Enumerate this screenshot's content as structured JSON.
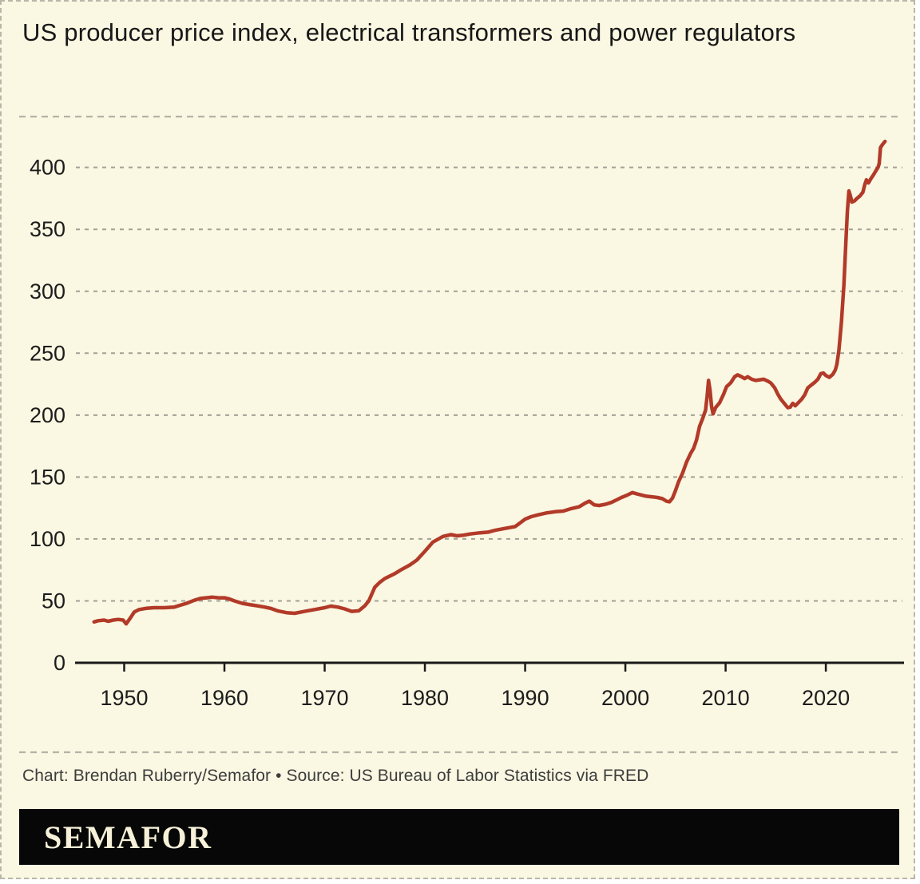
{
  "title": "US producer price index, electrical transformers and power regulators",
  "credit": "Chart: Brendan Ruberry/Semafor • Source: US Bureau of Labor Statistics via FRED",
  "logo": "SEMAFOR",
  "colors": {
    "background": "#faf7e2",
    "line": "#b23a28",
    "grid": "#a3a196",
    "separator": "#b5b3a7",
    "axis": "#1a1a1a",
    "tick_label": "#1c1c1c",
    "title_text": "#171717",
    "credit_text": "#3d3d3d",
    "logo_bar": "#070707",
    "logo_text": "#f6f1d8",
    "border": "#b9b7ab"
  },
  "chart_data": {
    "type": "line",
    "title": "US producer price index, electrical transformers and power regulators",
    "xlabel": "",
    "ylabel": "",
    "grid": "horizontal-dashed",
    "legend": "none",
    "x_ticks": [
      1950,
      1960,
      1970,
      1980,
      1990,
      2000,
      2010,
      2020
    ],
    "y_ticks": [
      0,
      50,
      100,
      150,
      200,
      250,
      300,
      350,
      400
    ],
    "xlim": [
      1945.1,
      2027.8
    ],
    "ylim": [
      0,
      443
    ],
    "series": [
      {
        "name": "Producer price index, electrical transformers and power regulators",
        "color": "#b23a28",
        "points": [
          [
            1947,
            33
          ],
          [
            1947.4,
            34
          ],
          [
            1948,
            34.5
          ],
          [
            1948.4,
            33.5
          ],
          [
            1948.9,
            34.5
          ],
          [
            1949.4,
            35
          ],
          [
            1949.9,
            34.5
          ],
          [
            1950.2,
            31.5
          ],
          [
            1950.6,
            36
          ],
          [
            1951,
            41
          ],
          [
            1951.5,
            43
          ],
          [
            1952.2,
            44
          ],
          [
            1953,
            44.5
          ],
          [
            1954,
            44.5
          ],
          [
            1955,
            45
          ],
          [
            1955.6,
            46.5
          ],
          [
            1956.2,
            48
          ],
          [
            1957,
            50.5
          ],
          [
            1957.6,
            52
          ],
          [
            1958.2,
            52.5
          ],
          [
            1958.8,
            53
          ],
          [
            1959.4,
            52.5
          ],
          [
            1960,
            52.5
          ],
          [
            1960.5,
            51.5
          ],
          [
            1961,
            50
          ],
          [
            1961.8,
            48
          ],
          [
            1962.5,
            47
          ],
          [
            1963.3,
            46
          ],
          [
            1964,
            45
          ],
          [
            1964.6,
            44
          ],
          [
            1965.3,
            42
          ],
          [
            1966.2,
            40.5
          ],
          [
            1967,
            40
          ],
          [
            1968,
            41.5
          ],
          [
            1969,
            43
          ],
          [
            1970,
            44.5
          ],
          [
            1970.6,
            45.8
          ],
          [
            1971.3,
            45
          ],
          [
            1972,
            43.5
          ],
          [
            1972.7,
            41.5
          ],
          [
            1973.4,
            42
          ],
          [
            1974,
            46
          ],
          [
            1974.4,
            50
          ],
          [
            1975,
            61
          ],
          [
            1975.5,
            65
          ],
          [
            1976,
            68
          ],
          [
            1977,
            72
          ],
          [
            1977.6,
            75
          ],
          [
            1978.5,
            79
          ],
          [
            1979.2,
            83
          ],
          [
            1980,
            90
          ],
          [
            1980.8,
            97.5
          ],
          [
            1981.8,
            102
          ],
          [
            1982.6,
            103.5
          ],
          [
            1983.2,
            102.5
          ],
          [
            1983.8,
            103
          ],
          [
            1984.5,
            104
          ],
          [
            1985.5,
            105
          ],
          [
            1986.3,
            105.5
          ],
          [
            1987,
            107
          ],
          [
            1988,
            108.5
          ],
          [
            1989,
            110
          ],
          [
            1989.5,
            113
          ],
          [
            1990,
            116
          ],
          [
            1990.6,
            118
          ],
          [
            1991.3,
            119.5
          ],
          [
            1992.1,
            121
          ],
          [
            1993,
            122
          ],
          [
            1993.8,
            122.5
          ],
          [
            1994.6,
            124.5
          ],
          [
            1995.4,
            126
          ],
          [
            1996,
            129
          ],
          [
            1996.4,
            130.5
          ],
          [
            1996.9,
            127.5
          ],
          [
            1997.4,
            127
          ],
          [
            1998,
            128
          ],
          [
            1998.6,
            129.5
          ],
          [
            1999.1,
            131.5
          ],
          [
            1999.6,
            133.5
          ],
          [
            2000.2,
            135.5
          ],
          [
            2000.7,
            137.5
          ],
          [
            2001.1,
            136.5
          ],
          [
            2001.6,
            135.5
          ],
          [
            2002.1,
            134.5
          ],
          [
            2002.7,
            134
          ],
          [
            2003.2,
            133.5
          ],
          [
            2003.7,
            132.5
          ],
          [
            2004.1,
            130.5
          ],
          [
            2004.4,
            130
          ],
          [
            2004.7,
            133
          ],
          [
            2005,
            139
          ],
          [
            2005.3,
            146
          ],
          [
            2005.7,
            153
          ],
          [
            2006.1,
            162
          ],
          [
            2006.5,
            169
          ],
          [
            2006.8,
            173
          ],
          [
            2007.1,
            180
          ],
          [
            2007.4,
            191
          ],
          [
            2007.7,
            197
          ],
          [
            2008,
            204
          ],
          [
            2008.15,
            215
          ],
          [
            2008.3,
            228
          ],
          [
            2008.45,
            220
          ],
          [
            2008.6,
            207
          ],
          [
            2008.75,
            201
          ],
          [
            2009,
            206
          ],
          [
            2009.4,
            210
          ],
          [
            2009.8,
            217
          ],
          [
            2010.1,
            223
          ],
          [
            2010.5,
            226
          ],
          [
            2010.9,
            231
          ],
          [
            2011.2,
            232.5
          ],
          [
            2011.6,
            231
          ],
          [
            2011.9,
            229.5
          ],
          [
            2012.2,
            231
          ],
          [
            2012.6,
            229
          ],
          [
            2013,
            228
          ],
          [
            2013.4,
            228.5
          ],
          [
            2013.8,
            229
          ],
          [
            2014.2,
            227.5
          ],
          [
            2014.5,
            226
          ],
          [
            2014.9,
            222
          ],
          [
            2015.2,
            217
          ],
          [
            2015.5,
            213
          ],
          [
            2015.9,
            209
          ],
          [
            2016.2,
            206
          ],
          [
            2016.45,
            206.5
          ],
          [
            2016.7,
            209.5
          ],
          [
            2016.95,
            207.5
          ],
          [
            2017.25,
            210
          ],
          [
            2017.6,
            213
          ],
          [
            2017.9,
            216.5
          ],
          [
            2018.2,
            222
          ],
          [
            2018.5,
            224
          ],
          [
            2018.9,
            226.5
          ],
          [
            2019.2,
            229
          ],
          [
            2019.5,
            233.5
          ],
          [
            2019.75,
            234
          ],
          [
            2020,
            232
          ],
          [
            2020.35,
            230.5
          ],
          [
            2020.7,
            233
          ],
          [
            2020.95,
            236.5
          ],
          [
            2021.1,
            241
          ],
          [
            2021.3,
            252
          ],
          [
            2021.55,
            275
          ],
          [
            2021.8,
            305
          ],
          [
            2022,
            340
          ],
          [
            2022.15,
            365
          ],
          [
            2022.3,
            381
          ],
          [
            2022.45,
            377
          ],
          [
            2022.6,
            372
          ],
          [
            2022.85,
            373
          ],
          [
            2023.1,
            375
          ],
          [
            2023.4,
            377
          ],
          [
            2023.7,
            380
          ],
          [
            2023.9,
            386.5
          ],
          [
            2024.05,
            390
          ],
          [
            2024.25,
            387.5
          ],
          [
            2024.5,
            391
          ],
          [
            2024.75,
            394
          ],
          [
            2025,
            397.5
          ],
          [
            2025.2,
            400
          ],
          [
            2025.32,
            403
          ],
          [
            2025.45,
            416
          ],
          [
            2025.65,
            418.5
          ],
          [
            2025.9,
            421
          ]
        ]
      }
    ]
  }
}
